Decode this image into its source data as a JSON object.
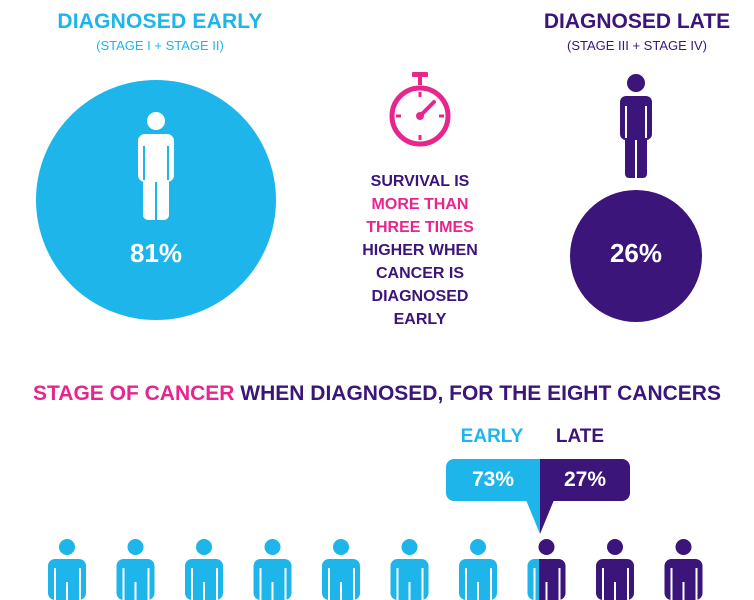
{
  "early": {
    "title": "DIAGNOSED EARLY",
    "subtitle": "(STAGE I + STAGE II)",
    "percent": "81%",
    "color": "#1eb5ea"
  },
  "late": {
    "title": "DIAGNOSED LATE",
    "subtitle": "(STAGE III + STAGE IV)",
    "percent": "26%",
    "color": "#3b1579"
  },
  "survival": {
    "line1": "SURVIVAL IS",
    "line2": "MORE THAN",
    "line3": "THREE TIMES",
    "line4": "HIGHER WHEN",
    "line5": "CANCER IS",
    "line6": "DIAGNOSED",
    "line7": "EARLY",
    "highlight_color": "#e8258e"
  },
  "stage_section": {
    "heading_highlight": "STAGE OF CANCER",
    "heading_rest": " WHEN DIAGNOSED, FOR THE EIGHT CANCERS",
    "early_label": "EARLY",
    "late_label": "LATE",
    "early_value": "73%",
    "late_value": "27%",
    "early_fraction": 0.73,
    "late_fraction": 0.27
  },
  "icons": {
    "timer": "stopwatch-icon",
    "person": "person-icon"
  }
}
